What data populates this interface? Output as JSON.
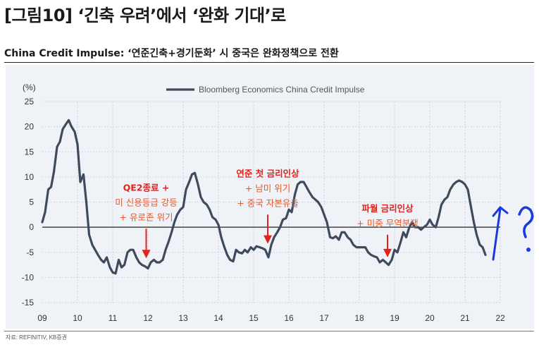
{
  "figure": {
    "title": "[그림10] ‘긴축 우려’에서 ‘완화 기대’로",
    "subtitle": "China Credit Impulse: ‘연준긴축+경기둔화’ 시 중국은 완화정책으로 전환",
    "source": "자료: REFINITIV, KB증권"
  },
  "colors": {
    "line": "#3e4b5c",
    "annotation": "#e2231a",
    "annotation_text": "#e8572a",
    "zero_line": "#222222",
    "grid": "#cfd6df",
    "pen": "#1a3ae0"
  },
  "chart_data": {
    "type": "line",
    "ylabel_unit": "(%)",
    "ylim": [
      -15,
      25
    ],
    "yticks": [
      25,
      20,
      15,
      10,
      5,
      0,
      -5,
      -10,
      -15
    ],
    "ytick_labels": [
      "25",
      "20",
      "15",
      "10",
      "5",
      "0",
      "-5",
      "-10",
      "-15"
    ],
    "xlim": [
      2009,
      2022
    ],
    "xticks": [
      2009,
      2010,
      2011,
      2012,
      2013,
      2014,
      2015,
      2016,
      2017,
      2018,
      2019,
      2020,
      2021,
      2022
    ],
    "xtick_labels": [
      "09",
      "10",
      "11",
      "12",
      "13",
      "14",
      "15",
      "16",
      "17",
      "18",
      "19",
      "20",
      "21",
      "22"
    ],
    "grid": true,
    "legend": "top-center",
    "series": [
      {
        "name": "Bloomberg Economics China Credit Impulse",
        "points": [
          [
            2009.0,
            1.0
          ],
          [
            2009.08,
            3.0
          ],
          [
            2009.17,
            7.5
          ],
          [
            2009.25,
            8.0
          ],
          [
            2009.33,
            11.0
          ],
          [
            2009.42,
            16.0
          ],
          [
            2009.5,
            17.0
          ],
          [
            2009.58,
            19.5
          ],
          [
            2009.67,
            20.5
          ],
          [
            2009.75,
            21.3
          ],
          [
            2009.83,
            20.0
          ],
          [
            2009.92,
            19.0
          ],
          [
            2010.0,
            16.5
          ],
          [
            2010.08,
            9.0
          ],
          [
            2010.17,
            10.5
          ],
          [
            2010.25,
            5.0
          ],
          [
            2010.33,
            -1.5
          ],
          [
            2010.42,
            -3.5
          ],
          [
            2010.5,
            -4.5
          ],
          [
            2010.58,
            -5.5
          ],
          [
            2010.67,
            -6.5
          ],
          [
            2010.75,
            -7.0
          ],
          [
            2010.83,
            -6.0
          ],
          [
            2010.92,
            -8.0
          ],
          [
            2011.0,
            -9.0
          ],
          [
            2011.08,
            -9.2
          ],
          [
            2011.17,
            -6.5
          ],
          [
            2011.25,
            -8.0
          ],
          [
            2011.33,
            -7.5
          ],
          [
            2011.42,
            -5.0
          ],
          [
            2011.5,
            -4.5
          ],
          [
            2011.58,
            -4.5
          ],
          [
            2011.67,
            -6.0
          ],
          [
            2011.75,
            -7.0
          ],
          [
            2011.83,
            -7.5
          ],
          [
            2011.92,
            -7.8
          ],
          [
            2012.0,
            -8.2
          ],
          [
            2012.08,
            -7.0
          ],
          [
            2012.17,
            -6.5
          ],
          [
            2012.25,
            -7.0
          ],
          [
            2012.33,
            -7.0
          ],
          [
            2012.42,
            -6.5
          ],
          [
            2012.5,
            -4.5
          ],
          [
            2012.58,
            -3.0
          ],
          [
            2012.67,
            -1.0
          ],
          [
            2012.75,
            1.0
          ],
          [
            2012.83,
            2.5
          ],
          [
            2012.92,
            3.5
          ],
          [
            2013.0,
            4.0
          ],
          [
            2013.08,
            7.5
          ],
          [
            2013.17,
            9.0
          ],
          [
            2013.25,
            10.5
          ],
          [
            2013.33,
            10.8
          ],
          [
            2013.42,
            8.5
          ],
          [
            2013.5,
            6.0
          ],
          [
            2013.58,
            5.0
          ],
          [
            2013.67,
            4.5
          ],
          [
            2013.75,
            3.5
          ],
          [
            2013.83,
            2.0
          ],
          [
            2013.92,
            1.5
          ],
          [
            2014.0,
            0.5
          ],
          [
            2014.08,
            -2.0
          ],
          [
            2014.17,
            -4.0
          ],
          [
            2014.25,
            -5.5
          ],
          [
            2014.33,
            -6.5
          ],
          [
            2014.42,
            -6.8
          ],
          [
            2014.5,
            -4.5
          ],
          [
            2014.58,
            -5.0
          ],
          [
            2014.67,
            -5.2
          ],
          [
            2014.75,
            -4.5
          ],
          [
            2014.83,
            -5.0
          ],
          [
            2014.92,
            -4.0
          ],
          [
            2015.0,
            -4.5
          ],
          [
            2015.08,
            -3.8
          ],
          [
            2015.17,
            -4.0
          ],
          [
            2015.25,
            -4.2
          ],
          [
            2015.33,
            -4.5
          ],
          [
            2015.42,
            -6.0
          ],
          [
            2015.5,
            -3.5
          ],
          [
            2015.58,
            -2.0
          ],
          [
            2015.67,
            -1.0
          ],
          [
            2015.75,
            0.0
          ],
          [
            2015.83,
            1.5
          ],
          [
            2015.92,
            1.8
          ],
          [
            2016.0,
            3.5
          ],
          [
            2016.08,
            3.0
          ],
          [
            2016.17,
            6.5
          ],
          [
            2016.25,
            8.5
          ],
          [
            2016.33,
            9.0
          ],
          [
            2016.42,
            9.0
          ],
          [
            2016.5,
            8.0
          ],
          [
            2016.58,
            7.0
          ],
          [
            2016.67,
            6.0
          ],
          [
            2016.75,
            5.5
          ],
          [
            2016.83,
            5.0
          ],
          [
            2016.92,
            4.0
          ],
          [
            2017.0,
            2.5
          ],
          [
            2017.08,
            1.0
          ],
          [
            2017.17,
            -2.0
          ],
          [
            2017.25,
            -2.2
          ],
          [
            2017.33,
            -1.8
          ],
          [
            2017.42,
            -2.5
          ],
          [
            2017.5,
            -1.0
          ],
          [
            2017.58,
            -1.0
          ],
          [
            2017.67,
            -2.0
          ],
          [
            2017.75,
            -2.5
          ],
          [
            2017.83,
            -3.5
          ],
          [
            2017.92,
            -4.0
          ],
          [
            2018.0,
            -4.0
          ],
          [
            2018.08,
            -4.0
          ],
          [
            2018.17,
            -4.0
          ],
          [
            2018.25,
            -5.0
          ],
          [
            2018.33,
            -5.5
          ],
          [
            2018.42,
            -5.8
          ],
          [
            2018.5,
            -6.0
          ],
          [
            2018.58,
            -7.0
          ],
          [
            2018.67,
            -6.5
          ],
          [
            2018.75,
            -7.0
          ],
          [
            2018.83,
            -7.5
          ],
          [
            2018.92,
            -6.5
          ],
          [
            2019.0,
            -4.5
          ],
          [
            2019.08,
            -5.0
          ],
          [
            2019.17,
            -3.0
          ],
          [
            2019.25,
            -1.0
          ],
          [
            2019.33,
            -2.0
          ],
          [
            2019.42,
            0.0
          ],
          [
            2019.5,
            1.0
          ],
          [
            2019.58,
            0.0
          ],
          [
            2019.67,
            0.0
          ],
          [
            2019.75,
            -0.5
          ],
          [
            2019.83,
            0.0
          ],
          [
            2019.92,
            0.5
          ],
          [
            2020.0,
            1.5
          ],
          [
            2020.08,
            0.5
          ],
          [
            2020.17,
            0.0
          ],
          [
            2020.25,
            2.0
          ],
          [
            2020.33,
            4.5
          ],
          [
            2020.42,
            5.5
          ],
          [
            2020.5,
            6.0
          ],
          [
            2020.58,
            7.5
          ],
          [
            2020.67,
            8.5
          ],
          [
            2020.75,
            9.0
          ],
          [
            2020.83,
            9.3
          ],
          [
            2020.92,
            9.0
          ],
          [
            2021.0,
            8.5
          ],
          [
            2021.08,
            7.5
          ],
          [
            2021.17,
            4.0
          ],
          [
            2021.25,
            1.0
          ],
          [
            2021.33,
            -1.5
          ],
          [
            2021.42,
            -3.5
          ],
          [
            2021.5,
            -4.0
          ],
          [
            2021.58,
            -5.5
          ]
        ]
      }
    ],
    "annotations": [
      {
        "lines": [
          "QE2종료 +",
          "미 신용등급 강등",
          "+ 유로존 위기"
        ],
        "arrow_x": 2011.95,
        "arrow_from": -0.3,
        "arrow_to": -6.2
      },
      {
        "lines": [
          "연준 첫 금리인상",
          "+ 남미 위기",
          "+ 중국 자본유출"
        ],
        "arrow_x": 2015.4,
        "arrow_from": 2.5,
        "arrow_to": -3.3
      },
      {
        "lines": [
          "파월 금리인상",
          "+ 미중 무역분쟁"
        ],
        "arrow_x": 2018.8,
        "arrow_from": -1.5,
        "arrow_to": -6.0
      }
    ]
  }
}
